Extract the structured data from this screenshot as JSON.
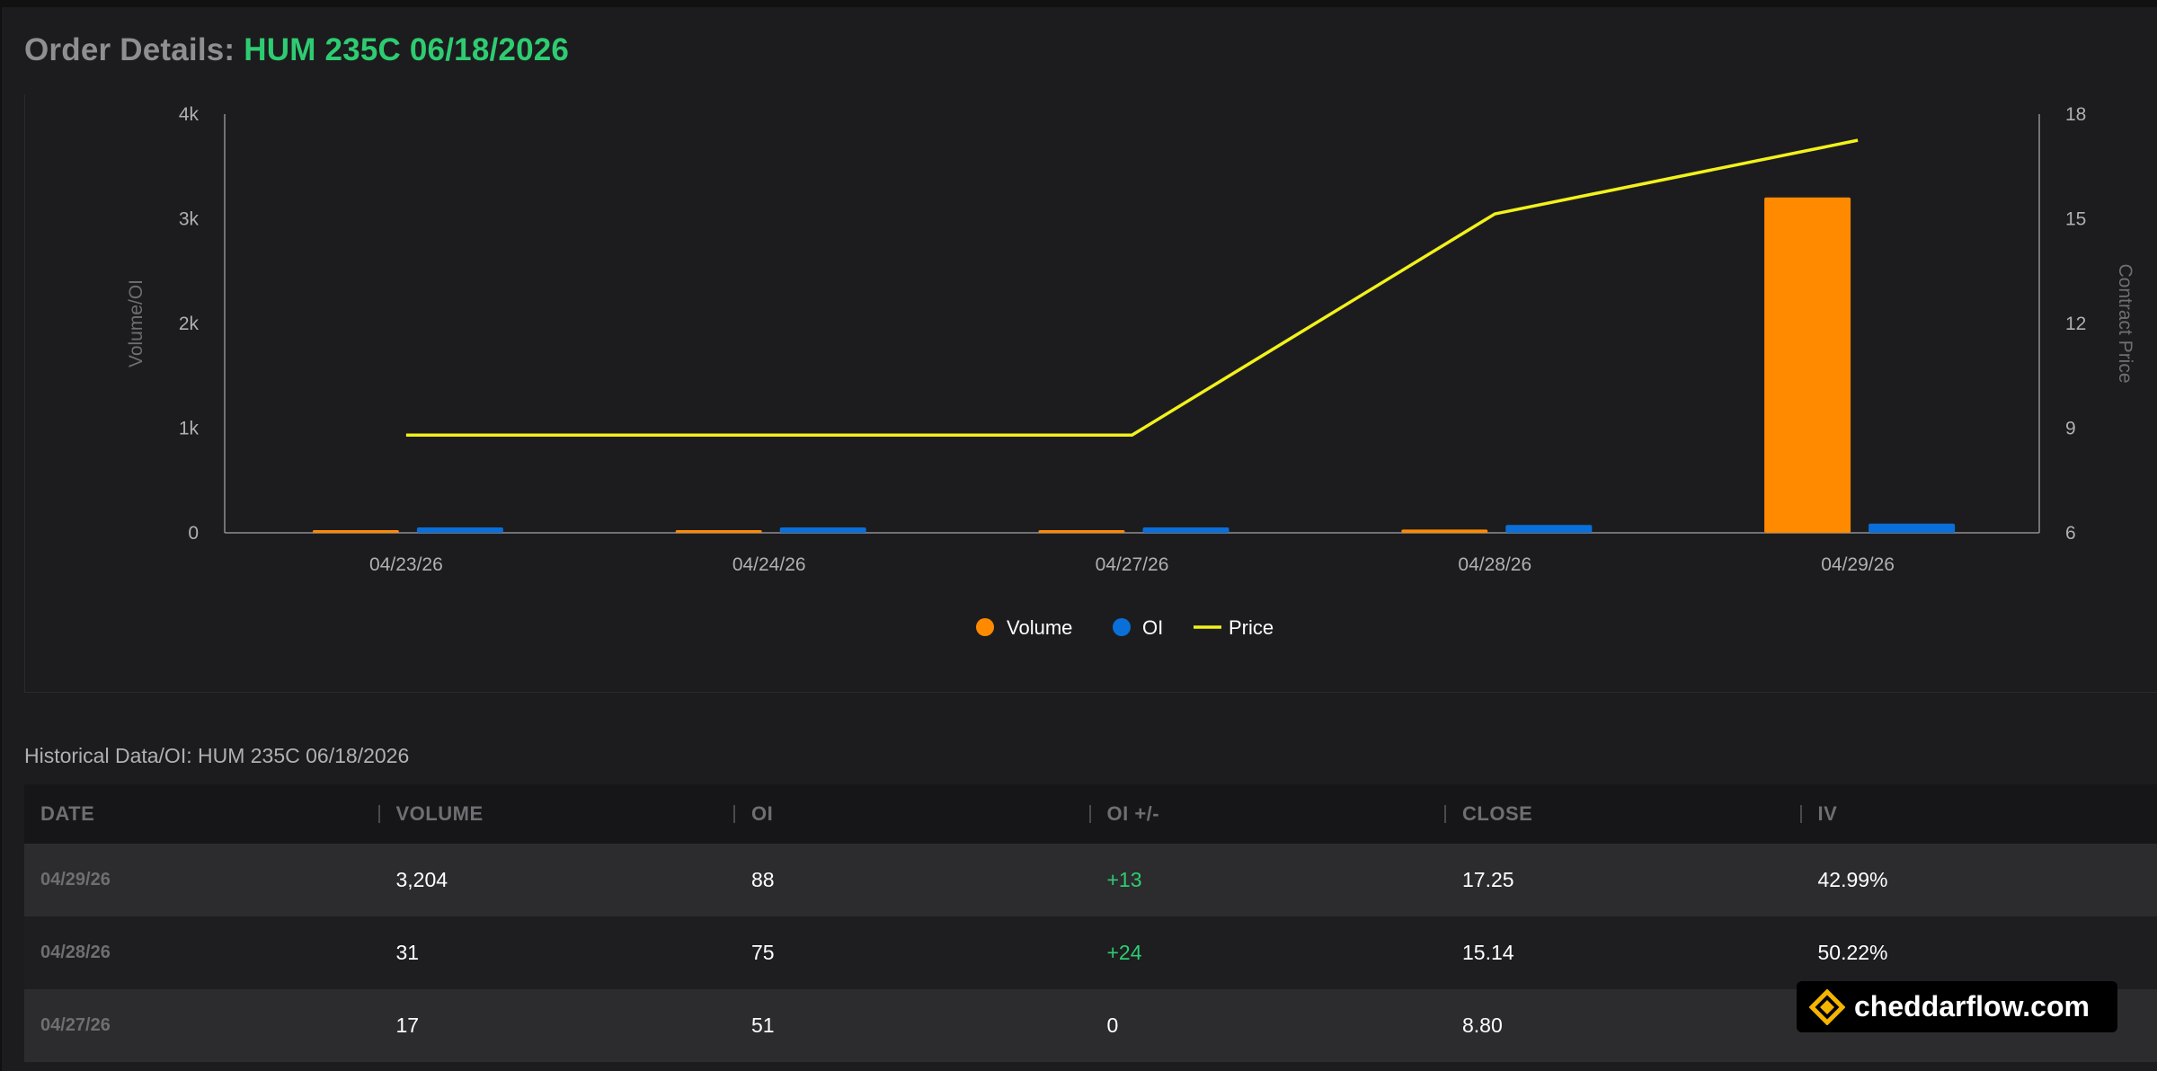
{
  "header": {
    "label": "Order Details:",
    "contract": "HUM 235C 06/18/2026"
  },
  "chart_data": {
    "type": "bar",
    "categories": [
      "04/23/26",
      "04/24/26",
      "04/27/26",
      "04/28/26",
      "04/29/26"
    ],
    "series": [
      {
        "name": "Volume",
        "type": "bar",
        "axis": "left",
        "color": "#ff8a00",
        "values": [
          0,
          0,
          17,
          31,
          3204
        ]
      },
      {
        "name": "OI",
        "type": "bar",
        "axis": "left",
        "color": "#0a6fd8",
        "values": [
          51,
          51,
          51,
          75,
          88
        ]
      },
      {
        "name": "Price",
        "type": "line",
        "axis": "right",
        "color": "#f2f21b",
        "values": [
          8.8,
          8.8,
          8.8,
          15.14,
          17.25
        ]
      }
    ],
    "ylabel": "Volume/OI",
    "y2label": "Contract Price",
    "ylim": [
      0,
      4000
    ],
    "y2lim": [
      6,
      18
    ],
    "yticks": [
      "0",
      "1k",
      "2k",
      "3k",
      "4k"
    ],
    "y2ticks": [
      "6",
      "9",
      "12",
      "15",
      "18"
    ],
    "legend_position": "bottom-center"
  },
  "history": {
    "title": "Historical Data/OI: HUM 235C 06/18/2026",
    "columns": [
      "DATE",
      "VOLUME",
      "OI",
      "OI +/-",
      "CLOSE",
      "IV"
    ],
    "rows": [
      {
        "date": "04/29/26",
        "volume": "3,204",
        "oi": "88",
        "oi_change": "+13",
        "close": "17.25",
        "iv": "42.99%"
      },
      {
        "date": "04/28/26",
        "volume": "31",
        "oi": "75",
        "oi_change": "+24",
        "close": "15.14",
        "iv": "50.22%"
      },
      {
        "date": "04/27/26",
        "volume": "17",
        "oi": "51",
        "oi_change": "0",
        "close": "8.80",
        "iv": ""
      }
    ]
  },
  "brand": {
    "logo_icon": "cheddarflow-icon",
    "name": "cheddarflow.com"
  },
  "colors": {
    "accent_green": "#2ecc71",
    "volume": "#ff8a00",
    "oi": "#0a6fd8",
    "price": "#f2f21b",
    "logo_gold": "#f5b400"
  }
}
